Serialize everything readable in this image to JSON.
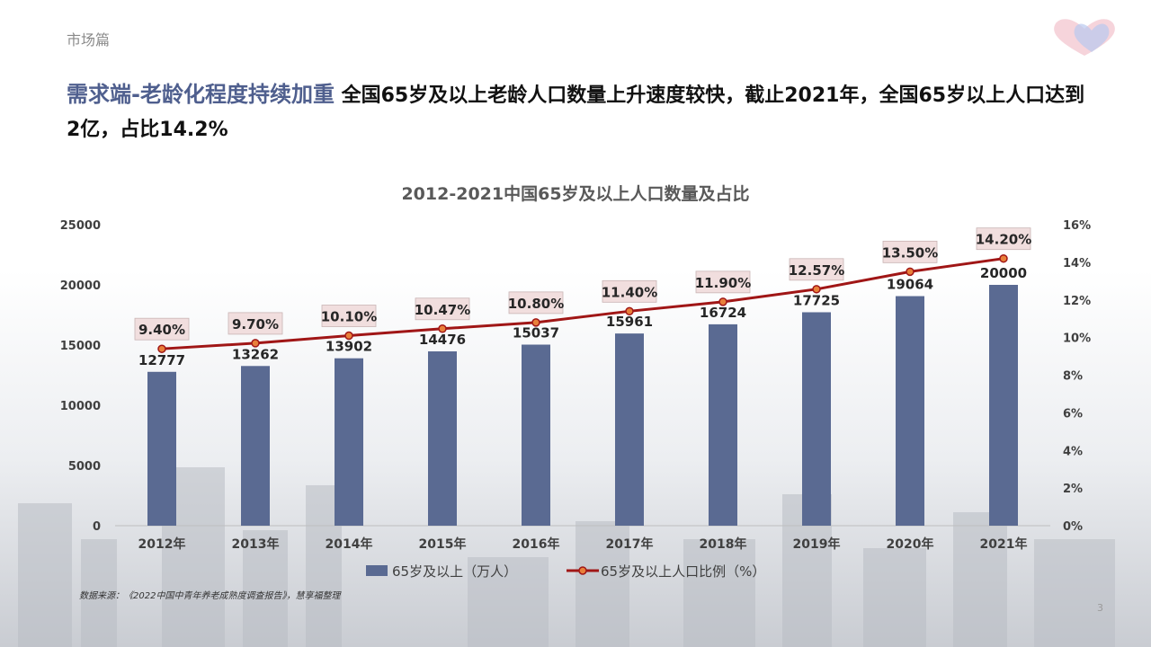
{
  "header": {
    "section": "市场篇",
    "headline_accent": "需求端-老龄化程度持续加重",
    "headline_text": " 全国65岁及以上老龄人口数量上升速度较快，截止2021年，全国65岁以上人口达到2亿，占比14.2%"
  },
  "colors": {
    "bar": "#5a6a92",
    "line": "#a01616",
    "accent": "#4f5f8e",
    "label_bg": "#f1dede"
  },
  "chart_data": {
    "type": "bar",
    "title": "2012-2021中国65岁及以上人口数量及占比",
    "categories": [
      "2012年",
      "2013年",
      "2014年",
      "2015年",
      "2016年",
      "2017年",
      "2018年",
      "2019年",
      "2020年",
      "2021年"
    ],
    "series": [
      {
        "name": "65岁及以上（万人）",
        "type": "bar",
        "axis": "left",
        "values": [
          12777,
          13262,
          13902,
          14476,
          15037,
          15961,
          16724,
          17725,
          19064,
          20000
        ],
        "labels": [
          "12777",
          "13262",
          "13902",
          "14476",
          "15037",
          "15961",
          "16724",
          "17725",
          "19064",
          "20000"
        ]
      },
      {
        "name": "65岁及以上人口比例（%）",
        "type": "line",
        "axis": "right",
        "values": [
          9.4,
          9.7,
          10.1,
          10.47,
          10.8,
          11.4,
          11.9,
          12.57,
          13.5,
          14.2
        ],
        "labels": [
          "9.40%",
          "9.70%",
          "10.10%",
          "10.47%",
          "10.80%",
          "11.40%",
          "11.90%",
          "12.57%",
          "13.50%",
          "14.20%"
        ]
      }
    ],
    "ylim_left": [
      0,
      25000
    ],
    "yticks_left": [
      "0",
      "5000",
      "10000",
      "15000",
      "20000",
      "25000"
    ],
    "ylim_right": [
      0,
      16
    ],
    "yticks_right": [
      "0%",
      "2%",
      "4%",
      "6%",
      "8%",
      "10%",
      "12%",
      "14%",
      "16%"
    ],
    "grid": false,
    "legend": "bottom"
  },
  "footer": {
    "source": "数据来源：《2022中国中青年养老成熟度调查报告》，慧享福整理",
    "page_number": "3"
  }
}
